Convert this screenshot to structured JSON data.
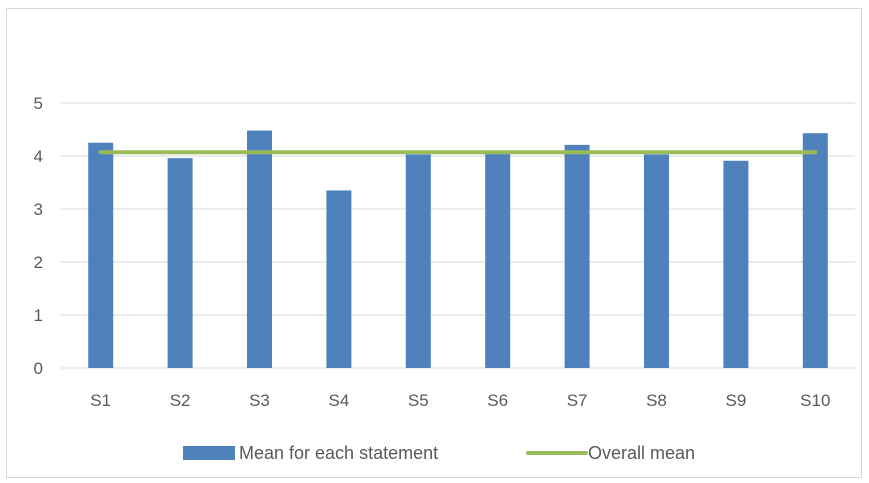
{
  "chart_data": {
    "type": "bar",
    "categories": [
      "S1",
      "S2",
      "S3",
      "S4",
      "S5",
      "S6",
      "S7",
      "S8",
      "S9",
      "S10"
    ],
    "series": [
      {
        "name": "Mean for each statement",
        "type": "bar",
        "color": "#4f81bd",
        "values": [
          4.25,
          3.96,
          4.48,
          3.35,
          4.03,
          4.06,
          4.21,
          4.03,
          3.91,
          4.43
        ]
      },
      {
        "name": "Overall mean",
        "type": "line",
        "color": "#9bbb59",
        "values": [
          4.07,
          4.07,
          4.07,
          4.07,
          4.07,
          4.07,
          4.07,
          4.07,
          4.07,
          4.07
        ]
      }
    ],
    "title": "",
    "xlabel": "",
    "ylabel": "",
    "ylim": [
      0,
      5
    ],
    "yticks": [
      "0",
      "1",
      "2",
      "3",
      "4",
      "5"
    ],
    "grid": true,
    "legend": "bottom"
  }
}
